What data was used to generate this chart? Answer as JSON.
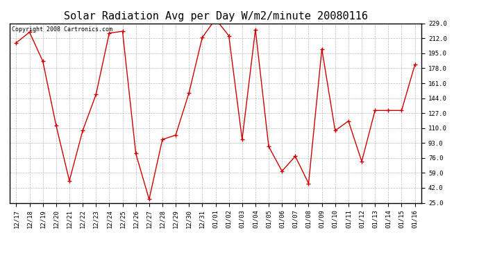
{
  "title": "Solar Radiation Avg per Day W/m2/minute 20080116",
  "copyright": "Copyright 2008 Cartronics.com",
  "labels": [
    "12/17",
    "12/18",
    "12/19",
    "12/20",
    "12/21",
    "12/22",
    "12/23",
    "12/24",
    "12/25",
    "12/26",
    "12/27",
    "12/28",
    "12/29",
    "12/30",
    "12/31",
    "01/01",
    "01/02",
    "01/03",
    "01/04",
    "01/05",
    "01/06",
    "01/07",
    "01/08",
    "01/09",
    "01/10",
    "01/11",
    "01/12",
    "01/13",
    "01/14",
    "01/15",
    "01/16"
  ],
  "values": [
    207,
    219,
    186,
    113,
    50,
    107,
    148,
    218,
    220,
    81,
    29,
    97,
    102,
    150,
    213,
    234,
    215,
    97,
    222,
    89,
    61,
    78,
    47,
    200,
    107,
    118,
    72,
    130,
    130,
    130,
    182
  ],
  "line_color": "#cc0000",
  "marker": "+",
  "bg_color": "#ffffff",
  "plot_bg_color": "#ffffff",
  "grid_color": "#bbbbbb",
  "ylim_min": 25.0,
  "ylim_max": 229.0,
  "yticks": [
    25.0,
    42.0,
    59.0,
    76.0,
    93.0,
    110.0,
    127.0,
    144.0,
    161.0,
    178.0,
    195.0,
    212.0,
    229.0
  ],
  "title_fontsize": 11,
  "copyright_fontsize": 6,
  "tick_fontsize": 6.5,
  "border_color": "#000000"
}
